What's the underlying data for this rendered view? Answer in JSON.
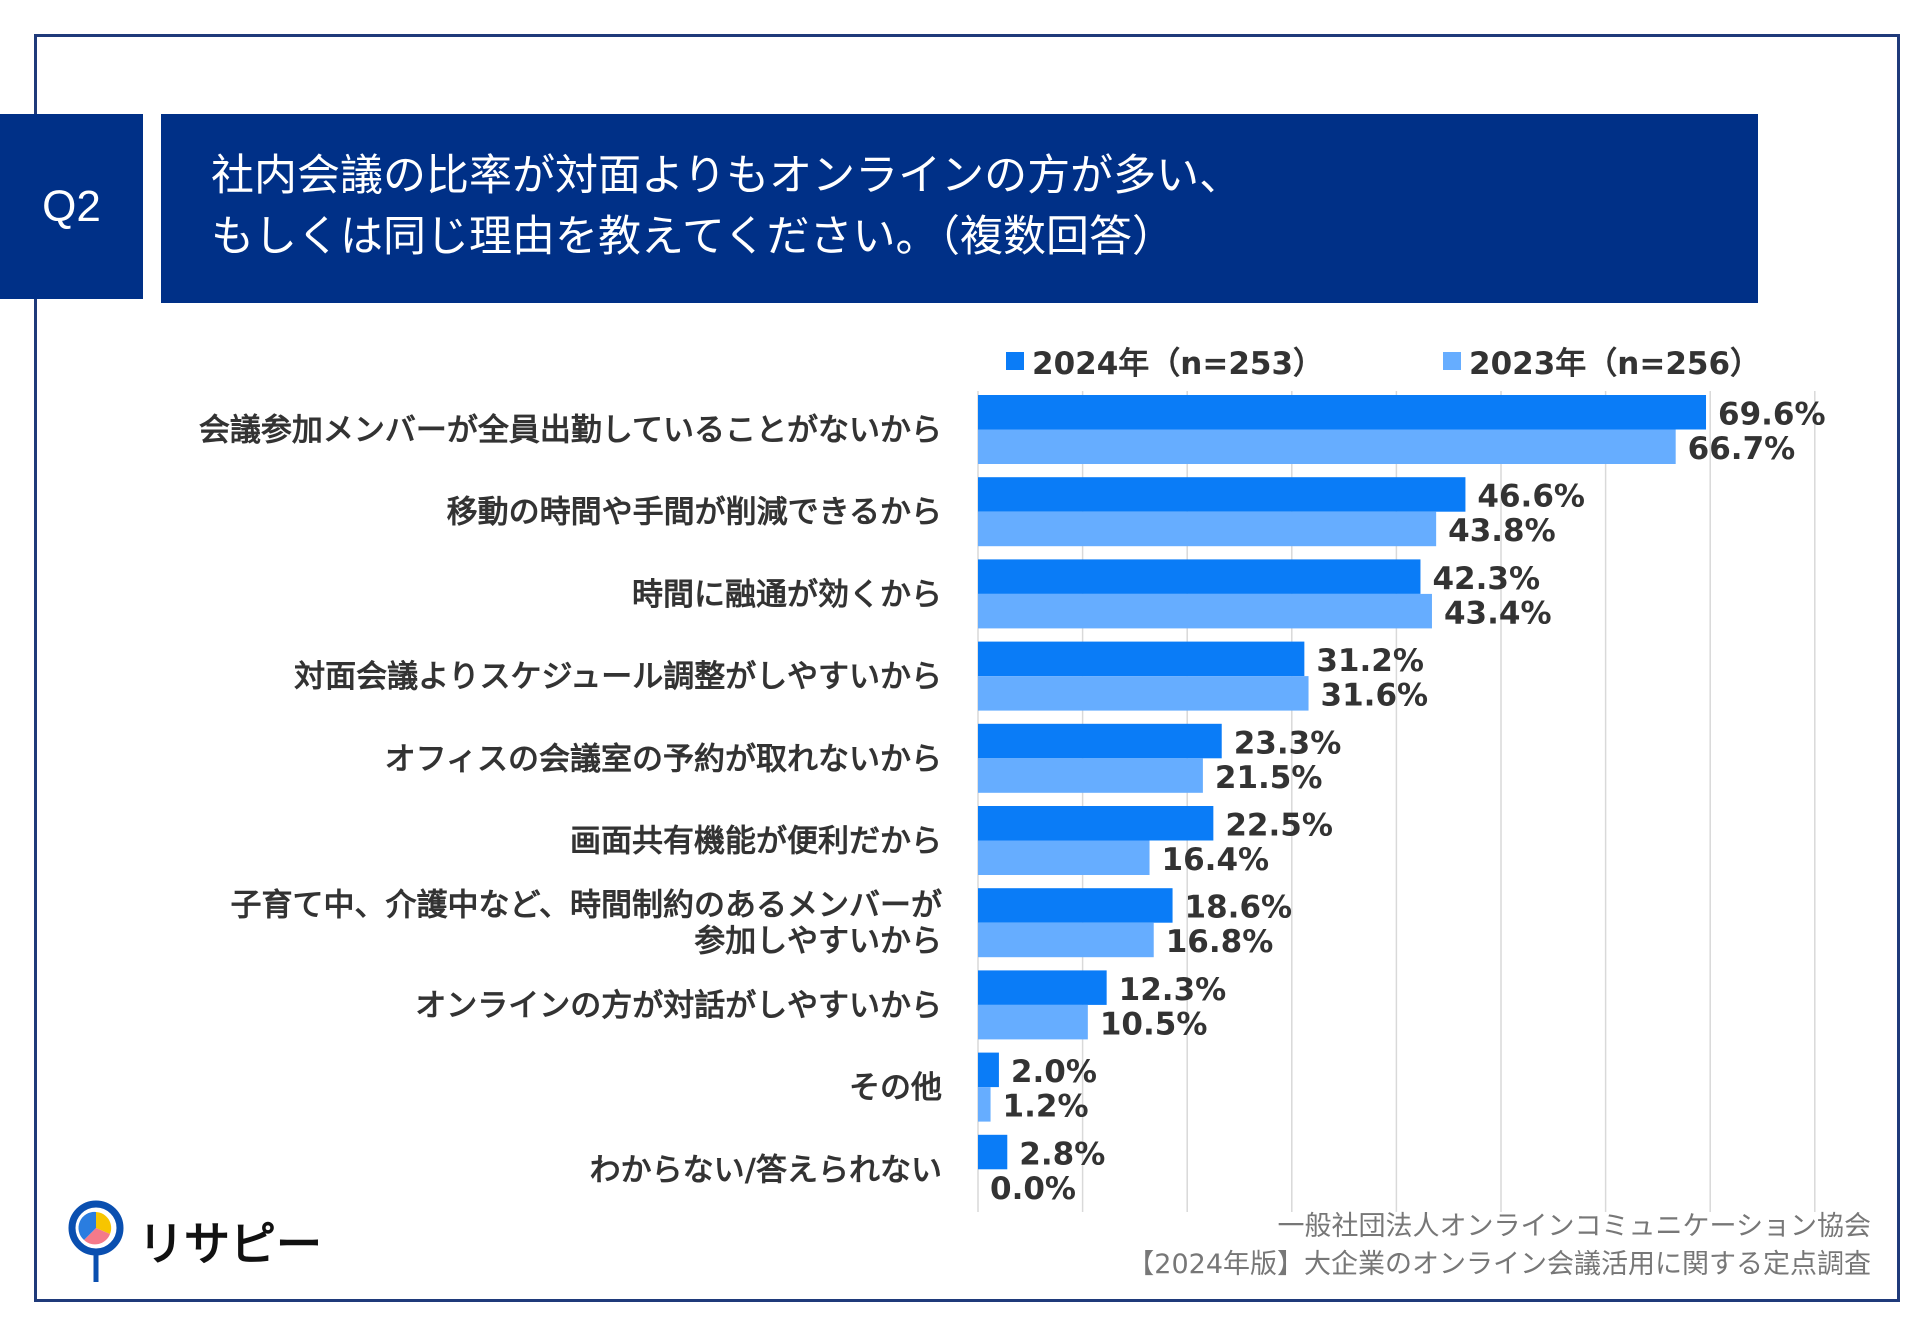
{
  "question_badge": "Q2",
  "title_lines": [
    "社内会議の比率が対面よりもオンラインの方が多い、",
    "もしくは同じ理由を教えてください。（複数回答）"
  ],
  "chart_data": {
    "type": "bar",
    "orientation": "horizontal",
    "categories": [
      "会議参加メンバーが全員出勤していることがないから",
      "移動の時間や手間が削減できるから",
      "時間に融通が効くから",
      "対面会議よりスケジュール調整がしやすいから",
      "オフィスの会議室の予約が取れないから",
      "画面共有機能が便利だから",
      "子育て中、介護中など、時間制約のあるメンバーが\n参加しやすいから",
      "オンラインの方が対話がしやすいから",
      "その他",
      "わからない/答えられない"
    ],
    "series": [
      {
        "name": "2024年（n=253）",
        "color": "#0a7cf7",
        "values": [
          69.6,
          46.6,
          42.3,
          31.2,
          23.3,
          22.5,
          18.6,
          12.3,
          2.0,
          2.8
        ]
      },
      {
        "name": "2023年（n=256）",
        "color": "#66adff",
        "values": [
          66.7,
          43.8,
          43.4,
          31.6,
          21.5,
          16.4,
          16.8,
          10.5,
          1.2,
          0.0
        ]
      }
    ],
    "xlim": [
      0,
      80
    ],
    "grid": true,
    "legend": "top"
  },
  "logo_text": "リサピー",
  "source_lines": [
    "一般社団法人オンラインコミュニケーション協会",
    "【2024年版】大企業のオンライン会議活用に関する定点調査"
  ]
}
